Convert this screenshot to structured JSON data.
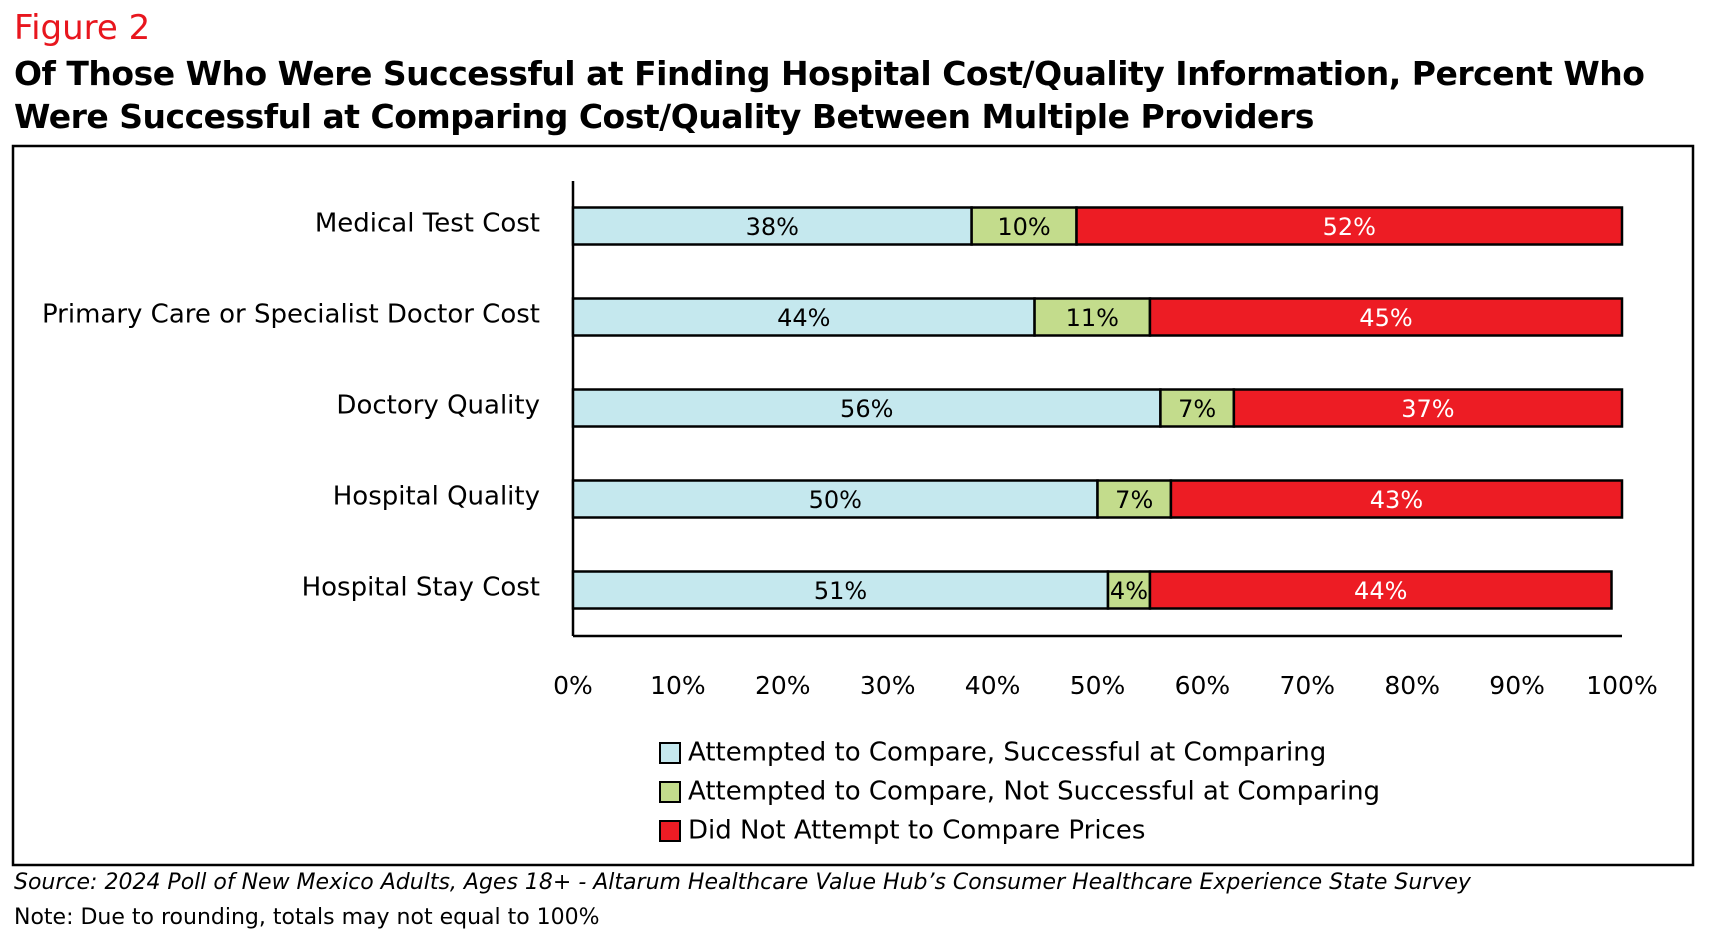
{
  "chart_data": {
    "type": "bar",
    "orientation": "horizontal",
    "stacked": true,
    "figure_label": "Figure 2",
    "title": "Of Those Who Were Successful at Finding Hospital Cost/Quality Information, Percent Who Were Successful at Comparing Cost/Quality Between Multiple Providers",
    "categories": [
      "Medical Test Cost",
      "Primary Care or Specialist Doctor Cost",
      "Doctory Quality",
      "Hospital Quality",
      "Hospital Stay Cost"
    ],
    "series": [
      {
        "name": "Attempted to Compare, Successful at Comparing",
        "color": "#c5e8ee",
        "values": [
          38,
          44,
          56,
          50,
          51
        ],
        "value_labels": [
          "38%",
          "44%",
          "56%",
          "50%",
          "51%"
        ]
      },
      {
        "name": "Attempted to Compare, Not Successful at Comparing",
        "color": "#c3dc8c",
        "values": [
          10,
          11,
          7,
          7,
          4
        ],
        "value_labels": [
          "10%",
          "11%",
          "7%",
          "7%",
          "4%"
        ]
      },
      {
        "name": "Did Not Attempt to Compare Prices",
        "color": "#ed1c24",
        "values": [
          52,
          45,
          37,
          43,
          44
        ],
        "value_labels": [
          "52%",
          "45%",
          "37%",
          "43%",
          "44%"
        ]
      }
    ],
    "xlim": [
      0,
      100
    ],
    "xticks": [
      {
        "value": 0,
        "label": "0%"
      },
      {
        "value": 10,
        "label": "10%"
      },
      {
        "value": 20,
        "label": "20%"
      },
      {
        "value": 30,
        "label": "30%"
      },
      {
        "value": 40,
        "label": "40%"
      },
      {
        "value": 50,
        "label": "50%"
      },
      {
        "value": 60,
        "label": "60%"
      },
      {
        "value": 70,
        "label": "70%"
      },
      {
        "value": 80,
        "label": "80%"
      },
      {
        "value": 90,
        "label": "90%"
      },
      {
        "value": 100,
        "label": "100%"
      }
    ],
    "grid": false,
    "legend": "bottom",
    "source": "Source: 2024 Poll of New Mexico Adults, Ages 18+ - Altarum Healthcare Value Hub’s Consumer Healthcare Experience State Survey",
    "note": "Note: Due to rounding, totals may not equal to 100%"
  }
}
